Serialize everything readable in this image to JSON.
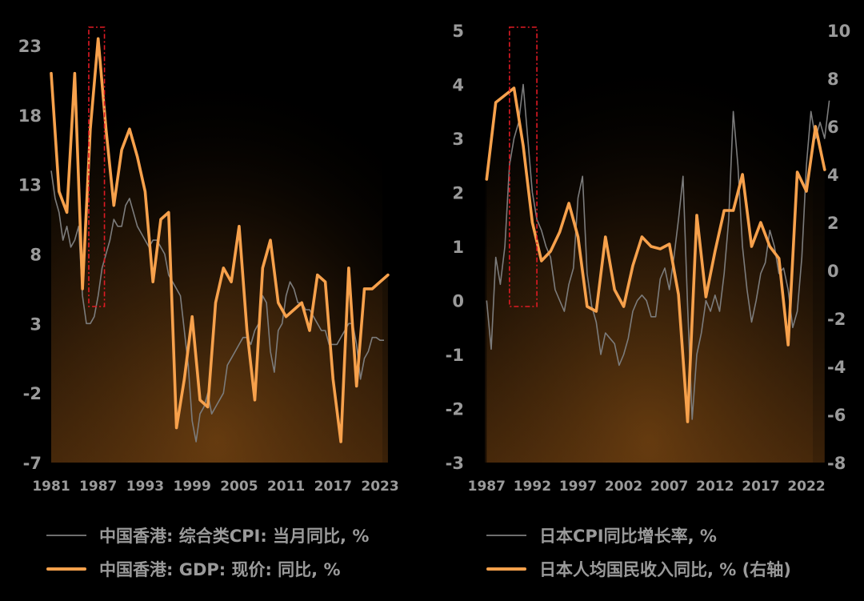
{
  "colors": {
    "cpi_line": "#7c7c7c",
    "gdp_line": "#f7a14c",
    "highlight_box": "#e01a24",
    "tick_text": "#9a9a9a",
    "background": "#000000"
  },
  "chart_data": [
    {
      "type": "line",
      "title": "",
      "x_ticks": [
        "1981",
        "1987",
        "1993",
        "1999",
        "2005",
        "2011",
        "2017",
        "2023"
      ],
      "ylim": [
        -7,
        23
      ],
      "y_ticks": [
        "23",
        "18",
        "13",
        "8",
        "3",
        "-2",
        "-7"
      ],
      "highlight_range": [
        1985.8,
        1987.8
      ],
      "series": [
        {
          "name": "中国香港: 综合类CPI: 当月同比, %",
          "kind": "cpi",
          "x": [
            1981,
            1981.5,
            1982,
            1982.5,
            1983,
            1983.5,
            1984,
            1984.5,
            1985,
            1985.5,
            1986,
            1986.5,
            1987,
            1987.5,
            1988,
            1988.5,
            1989,
            1989.5,
            1990,
            1990.5,
            1991,
            1991.5,
            1992,
            1992.5,
            1993,
            1993.5,
            1994,
            1994.5,
            1995,
            1995.5,
            1996,
            1996.5,
            1997,
            1997.5,
            1998,
            1998.5,
            1999,
            1999.5,
            2000,
            2000.5,
            2001,
            2001.5,
            2002,
            2002.5,
            2003,
            2003.5,
            2004,
            2004.5,
            2005,
            2005.5,
            2006,
            2006.5,
            2007,
            2007.5,
            2008,
            2008.5,
            2009,
            2009.5,
            2010,
            2010.5,
            2011,
            2011.5,
            2012,
            2012.5,
            2013,
            2013.5,
            2014,
            2014.5,
            2015,
            2015.5,
            2016,
            2016.5,
            2017,
            2017.5,
            2018,
            2018.5,
            2019,
            2019.5,
            2020,
            2020.5,
            2021,
            2021.5,
            2022,
            2022.5,
            2023,
            2023.5
          ],
          "values": [
            14,
            12,
            11,
            9,
            10,
            8.5,
            9,
            10,
            5,
            3,
            3,
            3.5,
            5,
            7,
            8,
            9,
            10.5,
            10,
            10,
            11.5,
            12,
            11,
            10,
            9.5,
            9,
            8.5,
            9,
            9,
            8.5,
            8,
            6.5,
            6,
            5.5,
            5,
            2.5,
            0,
            -4,
            -5.5,
            -3.5,
            -3,
            -2,
            -3.5,
            -3,
            -2.5,
            -2,
            0,
            0.5,
            1,
            1.5,
            2,
            2,
            1.5,
            2.5,
            3,
            5,
            4.5,
            1,
            -0.5,
            2.5,
            3,
            5,
            6,
            5.5,
            4.5,
            4.5,
            4,
            4,
            3.5,
            3,
            2.5,
            2.5,
            1.5,
            1.5,
            1.5,
            2,
            2.5,
            3,
            3,
            1.5,
            -1,
            0.5,
            1,
            2,
            2,
            1.8,
            1.8
          ]
        },
        {
          "name": "中国香港: GDP: 现价: 同比, %",
          "kind": "gdp",
          "x": [
            1981,
            1982,
            1983,
            1984,
            1985,
            1986,
            1987,
            1988,
            1989,
            1990,
            1991,
            1992,
            1993,
            1994,
            1995,
            1996,
            1997,
            1998,
            1999,
            2000,
            2001,
            2002,
            2003,
            2004,
            2005,
            2006,
            2007,
            2008,
            2009,
            2010,
            2011,
            2012,
            2013,
            2014,
            2015,
            2016,
            2017,
            2018,
            2019,
            2020,
            2021,
            2022,
            2023,
            2024
          ],
          "values": [
            21,
            12.5,
            11,
            21,
            5.5,
            17,
            23.5,
            17,
            11.5,
            15.5,
            17,
            15,
            12.5,
            6,
            10.5,
            11,
            -4.5,
            -1,
            3.5,
            -2.5,
            -3,
            4.5,
            7,
            6,
            10,
            2.5,
            -2.5,
            7,
            9,
            4.5,
            3.5,
            4,
            4.5,
            2.5,
            6.5,
            6,
            -1,
            -5.5,
            7,
            -1.5,
            5.5,
            5.5,
            6,
            6.5
          ]
        }
      ]
    },
    {
      "type": "line",
      "title": "",
      "x_ticks": [
        "1987",
        "1992",
        "1997",
        "2002",
        "2007",
        "2012",
        "2017",
        "2022"
      ],
      "ylim": [
        -3,
        5
      ],
      "y_ticks": [
        "5",
        "4",
        "3",
        "2",
        "1",
        "0",
        "-1",
        "-2",
        "-3"
      ],
      "ylim_right": [
        -8,
        10
      ],
      "y_ticks_right": [
        "10",
        "8",
        "6",
        "4",
        "2",
        "0",
        "-2",
        "-4",
        "-6",
        "-8"
      ],
      "highlight_range": [
        1989.5,
        1992.5
      ],
      "series": [
        {
          "name": "日本CPI同比增长率, %",
          "kind": "cpi",
          "axis": "left",
          "x": [
            1987,
            1987.5,
            1988,
            1988.5,
            1989,
            1989.5,
            1990,
            1990.5,
            1991,
            1991.5,
            1992,
            1992.5,
            1993,
            1993.5,
            1994,
            1994.5,
            1995,
            1995.5,
            1996,
            1996.5,
            1997,
            1997.5,
            1998,
            1998.5,
            1999,
            1999.5,
            2000,
            2000.5,
            2001,
            2001.5,
            2002,
            2002.5,
            2003,
            2003.5,
            2004,
            2004.5,
            2005,
            2005.5,
            2006,
            2006.5,
            2007,
            2007.5,
            2008,
            2008.5,
            2009,
            2009.5,
            2010,
            2010.5,
            2011,
            2011.5,
            2012,
            2012.5,
            2013,
            2013.5,
            2014,
            2014.5,
            2015,
            2015.5,
            2016,
            2016.5,
            2017,
            2017.5,
            2018,
            2018.5,
            2019,
            2019.5,
            2020,
            2020.5,
            2021,
            2021.5,
            2022,
            2022.5,
            2023,
            2023.5,
            2024,
            2024.5
          ],
          "values": [
            0,
            -0.9,
            0.8,
            0.3,
            1.0,
            2.5,
            3.0,
            3.3,
            4.0,
            3.0,
            2.0,
            1.5,
            1.3,
            1.0,
            0.8,
            0.2,
            0,
            -0.2,
            0.3,
            0.6,
            1.9,
            2.3,
            0.5,
            -0.1,
            -0.4,
            -1.0,
            -0.6,
            -0.7,
            -0.8,
            -1.2,
            -1.0,
            -0.7,
            -0.2,
            0,
            0.1,
            0,
            -0.3,
            -0.3,
            0.4,
            0.6,
            0.2,
            0.8,
            1.5,
            2.3,
            -0.1,
            -2.2,
            -1.0,
            -0.6,
            0,
            -0.2,
            0.1,
            -0.2,
            0.5,
            1.5,
            3.5,
            2.5,
            1.0,
            0.2,
            -0.4,
            0,
            0.5,
            0.7,
            1.3,
            1.0,
            0.5,
            0.6,
            0.2,
            -0.5,
            -0.2,
            0.8,
            2.5,
            3.5,
            3.0,
            3.3,
            3.0,
            3.7
          ]
        },
        {
          "name": "日本人均国民收入同比, % (右轴)",
          "kind": "gdp",
          "axis": "right",
          "x": [
            1987,
            1988,
            1989,
            1990,
            1991,
            1992,
            1993,
            1994,
            1995,
            1996,
            1997,
            1998,
            1999,
            2000,
            2001,
            2002,
            2003,
            2004,
            2005,
            2006,
            2007,
            2008,
            2009,
            2010,
            2011,
            2012,
            2013,
            2014,
            2015,
            2016,
            2017,
            2018,
            2019,
            2020,
            2021,
            2022,
            2023,
            2024
          ],
          "values": [
            3.8,
            7.0,
            7.3,
            7.6,
            5.2,
            2.0,
            0.4,
            0.8,
            1.6,
            2.8,
            1.4,
            -1.5,
            -1.7,
            1.4,
            -0.8,
            -1.5,
            0.2,
            1.4,
            1.0,
            0.9,
            1.1,
            -1.0,
            -6.3,
            2.3,
            -1.1,
            0.8,
            2.5,
            2.5,
            4.0,
            1.0,
            2.0,
            1.0,
            0.5,
            -3.1,
            4.1,
            3.3,
            6.0,
            4.2
          ]
        }
      ]
    }
  ],
  "legend": {
    "left": [
      "中国香港: 综合类CPI: 当月同比, %",
      "中国香港: GDP: 现价: 同比, %"
    ],
    "right": [
      "日本CPI同比增长率, %",
      "日本人均国民收入同比, % (右轴)"
    ]
  }
}
